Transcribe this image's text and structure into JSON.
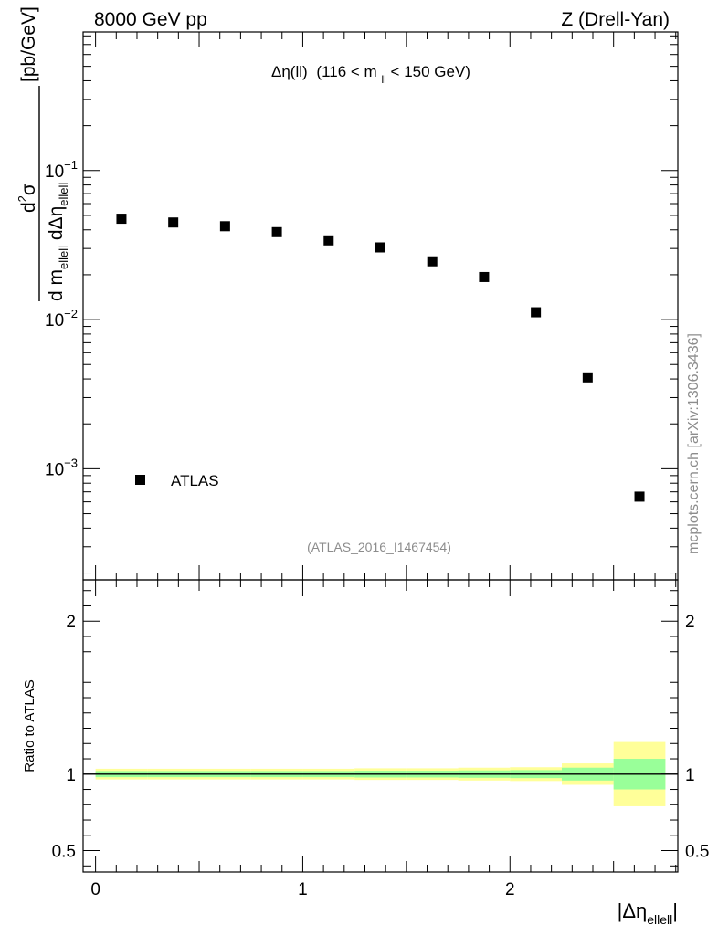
{
  "header": {
    "left": "8000 GeV pp",
    "right": "Z (Drell-Yan)"
  },
  "side_label": "mcplots.cern.ch [arXiv:1306.3436]",
  "chart_data": [
    {
      "type": "scatter",
      "panel": "main",
      "title_parts": {
        "observable": "Δη(ll)",
        "cut_open": "(116 < m",
        "cut_sub": "ll",
        "cut_close": " < 150 GeV)"
      },
      "ylabel_parts": {
        "num_d": "d",
        "num_sup": "2",
        "num_sigma": "σ",
        "den_d": "d m",
        "den_sub1": "ellell",
        "den_mid": " dΔη",
        "den_sub2": "ellell",
        "unit": "[pb/GeV]"
      },
      "yscale": "log",
      "ylim": [
        0.00018,
        0.85
      ],
      "xlim": [
        -0.06,
        2.81
      ],
      "y_ticks": [
        {
          "value": 0.1,
          "base": "10",
          "exp": "−1"
        },
        {
          "value": 0.01,
          "base": "10",
          "exp": "−2"
        },
        {
          "value": 0.001,
          "base": "10",
          "exp": "−3"
        }
      ],
      "series": [
        {
          "name": "ATLAS",
          "marker": "square",
          "color": "#000000",
          "x": [
            0.125,
            0.375,
            0.625,
            0.875,
            1.125,
            1.375,
            1.625,
            1.875,
            2.125,
            2.375,
            2.625
          ],
          "y": [
            0.0475,
            0.0448,
            0.0423,
            0.0386,
            0.034,
            0.0305,
            0.0246,
            0.0193,
            0.0112,
            0.0041,
            0.00065
          ]
        }
      ],
      "legend_position": "bottom-left",
      "annotation": "(ATLAS_2016_I1467454)"
    },
    {
      "type": "area",
      "panel": "ratio",
      "ylabel": "Ratio to ATLAS",
      "ylim": [
        0.36,
        2.27
      ],
      "xlim": [
        -0.06,
        2.81
      ],
      "xlabel_parts": {
        "main": "|Δη",
        "sub": "ellell",
        "close": "|"
      },
      "x_ticks": [
        {
          "value": 0,
          "label": "0"
        },
        {
          "value": 1,
          "label": "1"
        },
        {
          "value": 2,
          "label": "2"
        }
      ],
      "y_ticks": [
        {
          "value": 0.5,
          "label": "0.5"
        },
        {
          "value": 1,
          "label": "1"
        },
        {
          "value": 2,
          "label": "2"
        }
      ],
      "reference_line": 1,
      "bins": [
        0,
        0.25,
        0.5,
        0.75,
        1.0,
        1.25,
        1.5,
        1.75,
        2.0,
        2.25,
        2.5,
        2.75
      ],
      "band_outer": {
        "color": "#ffff99",
        "lo": [
          0.965,
          0.965,
          0.965,
          0.965,
          0.965,
          0.962,
          0.962,
          0.958,
          0.955,
          0.93,
          0.79
        ],
        "hi": [
          1.035,
          1.035,
          1.035,
          1.035,
          1.035,
          1.038,
          1.038,
          1.042,
          1.045,
          1.07,
          1.21
        ]
      },
      "band_inner": {
        "color": "#99ff99",
        "lo": [
          0.98,
          0.98,
          0.98,
          0.98,
          0.98,
          0.978,
          0.978,
          0.976,
          0.974,
          0.958,
          0.9
        ],
        "hi": [
          1.02,
          1.02,
          1.02,
          1.02,
          1.02,
          1.022,
          1.022,
          1.024,
          1.026,
          1.042,
          1.1
        ]
      }
    }
  ]
}
